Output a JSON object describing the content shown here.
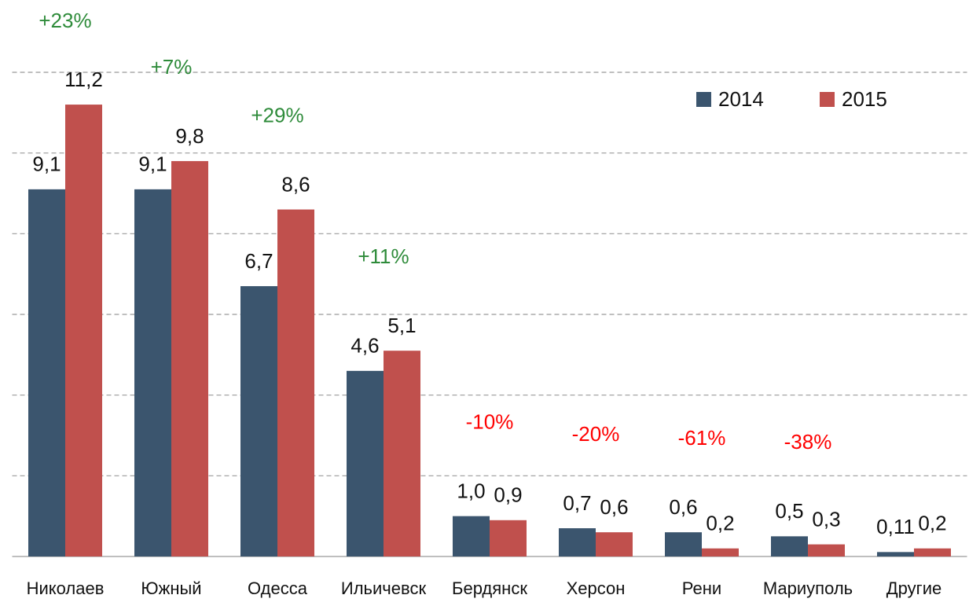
{
  "chart_data": {
    "type": "bar",
    "categories": [
      "Николаев",
      "Южный",
      "Одесса",
      "Ильичевск",
      "Бердянск",
      "Херсон",
      "Рени",
      "Мариуполь",
      "Другие"
    ],
    "series": [
      {
        "name": "2014",
        "color": "#3b556e",
        "values": [
          9.1,
          9.1,
          6.7,
          4.6,
          1.0,
          0.7,
          0.6,
          0.5,
          0.11
        ],
        "value_labels": [
          "9,1",
          "9,1",
          "6,7",
          "4,6",
          "1,0",
          "0,7",
          "0,6",
          "0,5",
          "0,11"
        ]
      },
      {
        "name": "2015",
        "color": "#c0504d",
        "values": [
          11.2,
          9.8,
          8.6,
          5.1,
          0.9,
          0.6,
          0.2,
          0.3,
          0.2
        ],
        "value_labels": [
          "11,2",
          "9,8",
          "8,6",
          "5,1",
          "0,9",
          "0,6",
          "0,2",
          "0,3",
          "0,2"
        ]
      }
    ],
    "annotations": [
      "+23%",
      "+7%",
      "+29%",
      "+11%",
      "-10%",
      "-20%",
      "-61%",
      "-38%",
      null
    ],
    "annotation_colors": {
      "up": "#2e8b3a",
      "down": "#ff0000"
    },
    "ylim": [
      0,
      12
    ],
    "yticks": [
      0,
      2,
      4,
      6,
      8,
      10,
      12
    ],
    "grid": true,
    "legend": "upper right"
  }
}
